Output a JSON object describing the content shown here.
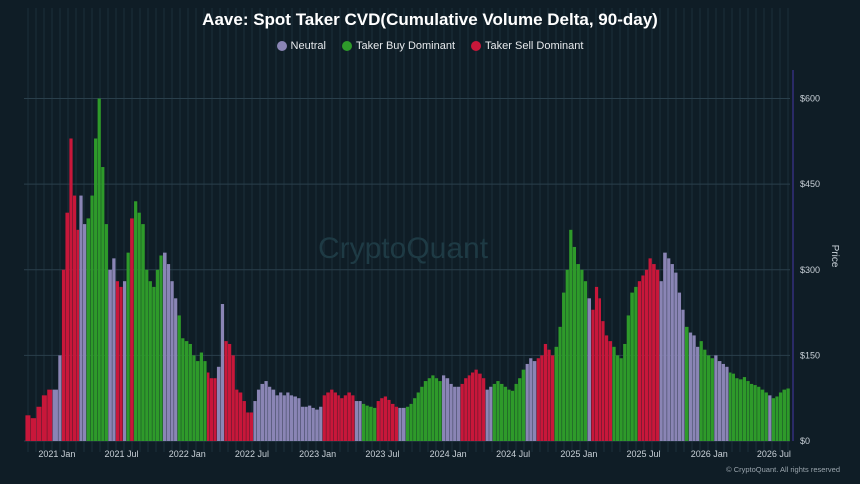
{
  "chart_data": {
    "type": "bar",
    "title": "Aave: Spot Taker CVD(Cumulative Volume Delta, 90-day)",
    "ylabel": "Price",
    "ylim": [
      0,
      650
    ],
    "xlim": [
      "2020-10-01",
      "2026-08-15"
    ],
    "y_ticks": [
      0,
      150,
      300,
      450,
      600
    ],
    "y_tick_labels": [
      "$0",
      "$150",
      "$300",
      "$450",
      "$600"
    ],
    "x_ticks": [
      "2021-01-01",
      "2021-07-01",
      "2022-01-01",
      "2022-07-01",
      "2023-01-01",
      "2023-07-01",
      "2024-01-01",
      "2024-07-01",
      "2025-01-01",
      "2025-07-01",
      "2026-01-01",
      "2026-07-01"
    ],
    "x_tick_labels": [
      "2021 Jan",
      "2021 Jul",
      "2022 Jan",
      "2022 Jul",
      "2023 Jan",
      "2023 Jul",
      "2024 Jan",
      "2024 Jul",
      "2025 Jan",
      "2025 Jul",
      "2026 Jan",
      "2026 Jul"
    ],
    "grid": true,
    "legend_position": "top-center",
    "series": [
      {
        "name": "Neutral",
        "color": "#8a85b5"
      },
      {
        "name": "Taker Buy Dominant",
        "color": "#2e9a2a"
      },
      {
        "name": "Taker Sell Dominant",
        "color": "#c8173a"
      }
    ],
    "points": [
      [
        "2020-10-05",
        45,
        2
      ],
      [
        "2020-10-20",
        40,
        2
      ],
      [
        "2020-11-05",
        60,
        2
      ],
      [
        "2020-11-20",
        80,
        2
      ],
      [
        "2020-12-05",
        90,
        2
      ],
      [
        "2020-12-20",
        90,
        0
      ],
      [
        "2021-01-05",
        150,
        0
      ],
      [
        "2021-01-15",
        300,
        2
      ],
      [
        "2021-01-25",
        400,
        2
      ],
      [
        "2021-02-05",
        530,
        2
      ],
      [
        "2021-02-15",
        430,
        2
      ],
      [
        "2021-02-25",
        370,
        2
      ],
      [
        "2021-03-05",
        430,
        0
      ],
      [
        "2021-03-15",
        380,
        0
      ],
      [
        "2021-03-25",
        390,
        1
      ],
      [
        "2021-04-05",
        430,
        1
      ],
      [
        "2021-04-15",
        530,
        1
      ],
      [
        "2021-04-25",
        600,
        1
      ],
      [
        "2021-05-05",
        480,
        1
      ],
      [
        "2021-05-15",
        380,
        1
      ],
      [
        "2021-05-25",
        300,
        0
      ],
      [
        "2021-06-05",
        320,
        0
      ],
      [
        "2021-06-15",
        280,
        2
      ],
      [
        "2021-06-25",
        270,
        2
      ],
      [
        "2021-07-05",
        280,
        0
      ],
      [
        "2021-07-15",
        330,
        1
      ],
      [
        "2021-07-25",
        390,
        2
      ],
      [
        "2021-08-05",
        420,
        1
      ],
      [
        "2021-08-15",
        400,
        1
      ],
      [
        "2021-08-25",
        380,
        1
      ],
      [
        "2021-09-05",
        300,
        1
      ],
      [
        "2021-09-15",
        280,
        1
      ],
      [
        "2021-09-25",
        270,
        1
      ],
      [
        "2021-10-05",
        300,
        1
      ],
      [
        "2021-10-15",
        325,
        1
      ],
      [
        "2021-10-25",
        330,
        0
      ],
      [
        "2021-11-05",
        310,
        0
      ],
      [
        "2021-11-15",
        280,
        0
      ],
      [
        "2021-11-25",
        250,
        0
      ],
      [
        "2021-12-05",
        220,
        1
      ],
      [
        "2021-12-15",
        180,
        1
      ],
      [
        "2021-12-25",
        175,
        1
      ],
      [
        "2022-01-05",
        170,
        1
      ],
      [
        "2022-01-15",
        150,
        1
      ],
      [
        "2022-01-25",
        140,
        1
      ],
      [
        "2022-02-05",
        155,
        1
      ],
      [
        "2022-02-15",
        140,
        1
      ],
      [
        "2022-02-25",
        120,
        2
      ],
      [
        "2022-03-05",
        110,
        2
      ],
      [
        "2022-03-15",
        110,
        2
      ],
      [
        "2022-03-25",
        130,
        0
      ],
      [
        "2022-04-05",
        240,
        0
      ],
      [
        "2022-04-15",
        175,
        2
      ],
      [
        "2022-04-25",
        170,
        2
      ],
      [
        "2022-05-05",
        150,
        2
      ],
      [
        "2022-05-15",
        90,
        2
      ],
      [
        "2022-05-25",
        85,
        2
      ],
      [
        "2022-06-05",
        70,
        2
      ],
      [
        "2022-06-15",
        50,
        2
      ],
      [
        "2022-06-25",
        50,
        2
      ],
      [
        "2022-07-05",
        70,
        0
      ],
      [
        "2022-07-15",
        90,
        0
      ],
      [
        "2022-07-25",
        100,
        0
      ],
      [
        "2022-08-05",
        105,
        0
      ],
      [
        "2022-08-15",
        95,
        0
      ],
      [
        "2022-08-25",
        90,
        0
      ],
      [
        "2022-09-05",
        80,
        0
      ],
      [
        "2022-09-15",
        85,
        0
      ],
      [
        "2022-09-25",
        80,
        0
      ],
      [
        "2022-10-05",
        85,
        0
      ],
      [
        "2022-10-15",
        80,
        0
      ],
      [
        "2022-10-25",
        78,
        0
      ],
      [
        "2022-11-05",
        75,
        0
      ],
      [
        "2022-11-15",
        60,
        0
      ],
      [
        "2022-11-25",
        60,
        0
      ],
      [
        "2022-12-05",
        62,
        0
      ],
      [
        "2022-12-15",
        58,
        0
      ],
      [
        "2022-12-25",
        55,
        0
      ],
      [
        "2023-01-05",
        60,
        0
      ],
      [
        "2023-01-15",
        80,
        2
      ],
      [
        "2023-01-25",
        85,
        2
      ],
      [
        "2023-02-05",
        90,
        2
      ],
      [
        "2023-02-15",
        85,
        2
      ],
      [
        "2023-02-25",
        80,
        2
      ],
      [
        "2023-03-05",
        75,
        2
      ],
      [
        "2023-03-15",
        80,
        2
      ],
      [
        "2023-03-25",
        85,
        2
      ],
      [
        "2023-04-05",
        80,
        2
      ],
      [
        "2023-04-15",
        70,
        0
      ],
      [
        "2023-04-25",
        70,
        0
      ],
      [
        "2023-05-05",
        65,
        1
      ],
      [
        "2023-05-15",
        62,
        1
      ],
      [
        "2023-05-25",
        60,
        1
      ],
      [
        "2023-06-05",
        58,
        1
      ],
      [
        "2023-06-15",
        70,
        2
      ],
      [
        "2023-06-25",
        75,
        2
      ],
      [
        "2023-07-05",
        78,
        2
      ],
      [
        "2023-07-15",
        72,
        2
      ],
      [
        "2023-07-25",
        65,
        2
      ],
      [
        "2023-08-05",
        60,
        2
      ],
      [
        "2023-08-15",
        58,
        0
      ],
      [
        "2023-08-25",
        58,
        0
      ],
      [
        "2023-09-05",
        60,
        1
      ],
      [
        "2023-09-15",
        65,
        1
      ],
      [
        "2023-09-25",
        75,
        1
      ],
      [
        "2023-10-05",
        85,
        1
      ],
      [
        "2023-10-15",
        95,
        1
      ],
      [
        "2023-10-25",
        105,
        1
      ],
      [
        "2023-11-05",
        110,
        1
      ],
      [
        "2023-11-15",
        115,
        1
      ],
      [
        "2023-11-25",
        110,
        1
      ],
      [
        "2023-12-05",
        105,
        1
      ],
      [
        "2023-12-15",
        115,
        0
      ],
      [
        "2023-12-25",
        110,
        0
      ],
      [
        "2024-01-05",
        100,
        0
      ],
      [
        "2024-01-15",
        95,
        0
      ],
      [
        "2024-01-25",
        95,
        0
      ],
      [
        "2024-02-05",
        100,
        2
      ],
      [
        "2024-02-15",
        110,
        2
      ],
      [
        "2024-02-25",
        115,
        2
      ],
      [
        "2024-03-05",
        120,
        2
      ],
      [
        "2024-03-15",
        125,
        2
      ],
      [
        "2024-03-25",
        118,
        2
      ],
      [
        "2024-04-05",
        110,
        2
      ],
      [
        "2024-04-15",
        90,
        0
      ],
      [
        "2024-04-25",
        95,
        0
      ],
      [
        "2024-05-05",
        100,
        1
      ],
      [
        "2024-05-15",
        105,
        1
      ],
      [
        "2024-05-25",
        100,
        1
      ],
      [
        "2024-06-05",
        95,
        1
      ],
      [
        "2024-06-15",
        90,
        1
      ],
      [
        "2024-06-25",
        88,
        1
      ],
      [
        "2024-07-05",
        100,
        1
      ],
      [
        "2024-07-15",
        110,
        1
      ],
      [
        "2024-07-25",
        125,
        1
      ],
      [
        "2024-08-05",
        135,
        0
      ],
      [
        "2024-08-15",
        145,
        0
      ],
      [
        "2024-08-25",
        140,
        0
      ],
      [
        "2024-09-05",
        145,
        2
      ],
      [
        "2024-09-15",
        150,
        2
      ],
      [
        "2024-09-25",
        170,
        2
      ],
      [
        "2024-10-05",
        160,
        2
      ],
      [
        "2024-10-15",
        150,
        2
      ],
      [
        "2024-10-25",
        165,
        1
      ],
      [
        "2024-11-05",
        200,
        1
      ],
      [
        "2024-11-15",
        260,
        1
      ],
      [
        "2024-11-25",
        300,
        1
      ],
      [
        "2024-12-05",
        370,
        1
      ],
      [
        "2024-12-15",
        340,
        1
      ],
      [
        "2024-12-25",
        310,
        1
      ],
      [
        "2025-01-05",
        300,
        1
      ],
      [
        "2025-01-15",
        280,
        1
      ],
      [
        "2025-01-25",
        250,
        0
      ],
      [
        "2025-02-05",
        230,
        2
      ],
      [
        "2025-02-15",
        270,
        2
      ],
      [
        "2025-02-25",
        250,
        2
      ],
      [
        "2025-03-05",
        210,
        2
      ],
      [
        "2025-03-15",
        185,
        2
      ],
      [
        "2025-03-25",
        175,
        2
      ],
      [
        "2025-04-05",
        165,
        1
      ],
      [
        "2025-04-15",
        150,
        1
      ],
      [
        "2025-04-25",
        145,
        1
      ],
      [
        "2025-05-05",
        170,
        1
      ],
      [
        "2025-05-15",
        220,
        1
      ],
      [
        "2025-05-25",
        260,
        1
      ],
      [
        "2025-06-05",
        270,
        1
      ],
      [
        "2025-06-15",
        280,
        2
      ],
      [
        "2025-06-25",
        290,
        2
      ],
      [
        "2025-07-05",
        300,
        2
      ],
      [
        "2025-07-15",
        320,
        2
      ],
      [
        "2025-07-25",
        310,
        2
      ],
      [
        "2025-08-05",
        300,
        2
      ],
      [
        "2025-08-15",
        280,
        0
      ],
      [
        "2025-08-25",
        330,
        0
      ],
      [
        "2025-09-05",
        320,
        0
      ],
      [
        "2025-09-15",
        310,
        0
      ],
      [
        "2025-09-25",
        295,
        0
      ],
      [
        "2025-10-05",
        260,
        0
      ],
      [
        "2025-10-15",
        230,
        0
      ],
      [
        "2025-10-25",
        200,
        1
      ],
      [
        "2025-11-05",
        190,
        0
      ],
      [
        "2025-11-15",
        185,
        0
      ],
      [
        "2025-11-25",
        165,
        0
      ],
      [
        "2025-12-05",
        175,
        1
      ],
      [
        "2025-12-15",
        160,
        1
      ],
      [
        "2025-12-25",
        150,
        1
      ],
      [
        "2026-01-05",
        145,
        1
      ],
      [
        "2026-01-15",
        150,
        0
      ],
      [
        "2026-01-25",
        140,
        0
      ],
      [
        "2026-02-05",
        135,
        0
      ],
      [
        "2026-02-15",
        130,
        0
      ],
      [
        "2026-02-25",
        120,
        1
      ],
      [
        "2026-03-05",
        118,
        1
      ],
      [
        "2026-03-15",
        110,
        1
      ],
      [
        "2026-03-25",
        108,
        1
      ],
      [
        "2026-04-05",
        112,
        1
      ],
      [
        "2026-04-15",
        105,
        1
      ],
      [
        "2026-04-25",
        100,
        1
      ],
      [
        "2026-05-05",
        98,
        1
      ],
      [
        "2026-05-15",
        95,
        1
      ],
      [
        "2026-05-25",
        90,
        1
      ],
      [
        "2026-06-05",
        85,
        1
      ],
      [
        "2026-06-15",
        80,
        0
      ],
      [
        "2026-06-25",
        75,
        1
      ],
      [
        "2026-07-05",
        78,
        1
      ],
      [
        "2026-07-15",
        85,
        1
      ],
      [
        "2026-07-25",
        90,
        1
      ],
      [
        "2026-08-05",
        92,
        1
      ]
    ]
  },
  "watermark_text": "CryptoQuant",
  "credit": "© CryptoQuant. All rights reserved"
}
